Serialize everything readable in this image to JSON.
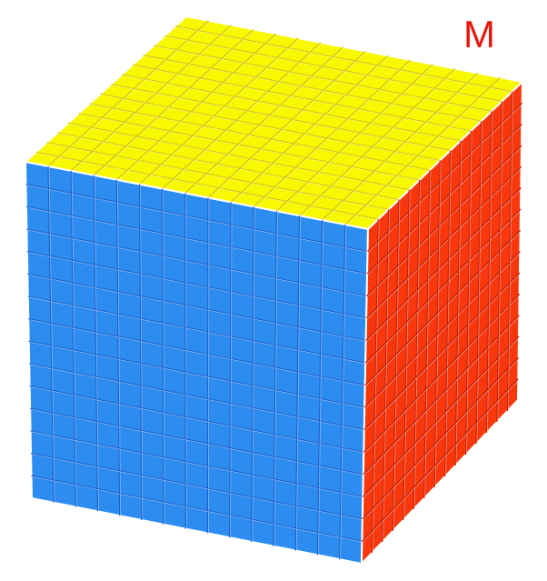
{
  "size_label": "M",
  "cube": {
    "grid": 15,
    "colors": {
      "top": "#f8f800",
      "front": "#2c8cf0",
      "right": "#f8380c",
      "label": "#e8160c"
    }
  }
}
